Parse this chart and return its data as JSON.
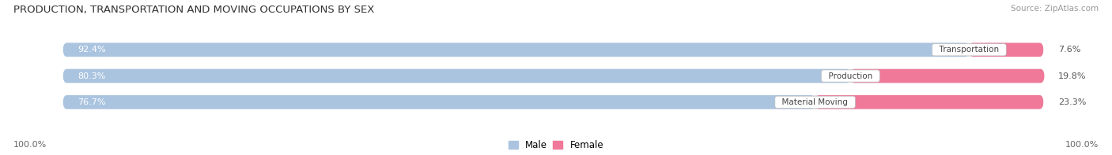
{
  "title": "PRODUCTION, TRANSPORTATION AND MOVING OCCUPATIONS BY SEX",
  "source": "Source: ZipAtlas.com",
  "categories": [
    "Transportation",
    "Production",
    "Material Moving"
  ],
  "male_values": [
    92.4,
    80.3,
    76.7
  ],
  "female_values": [
    7.6,
    19.8,
    23.3
  ],
  "male_color": "#aac4e0",
  "female_color": "#f07898",
  "bar_bg_color": "#e4e4ec",
  "title_fontsize": 9.5,
  "bar_label_fontsize": 8,
  "cat_label_fontsize": 7.5,
  "legend_fontsize": 8.5,
  "left_axis_label": "100.0%",
  "right_axis_label": "100.0%"
}
